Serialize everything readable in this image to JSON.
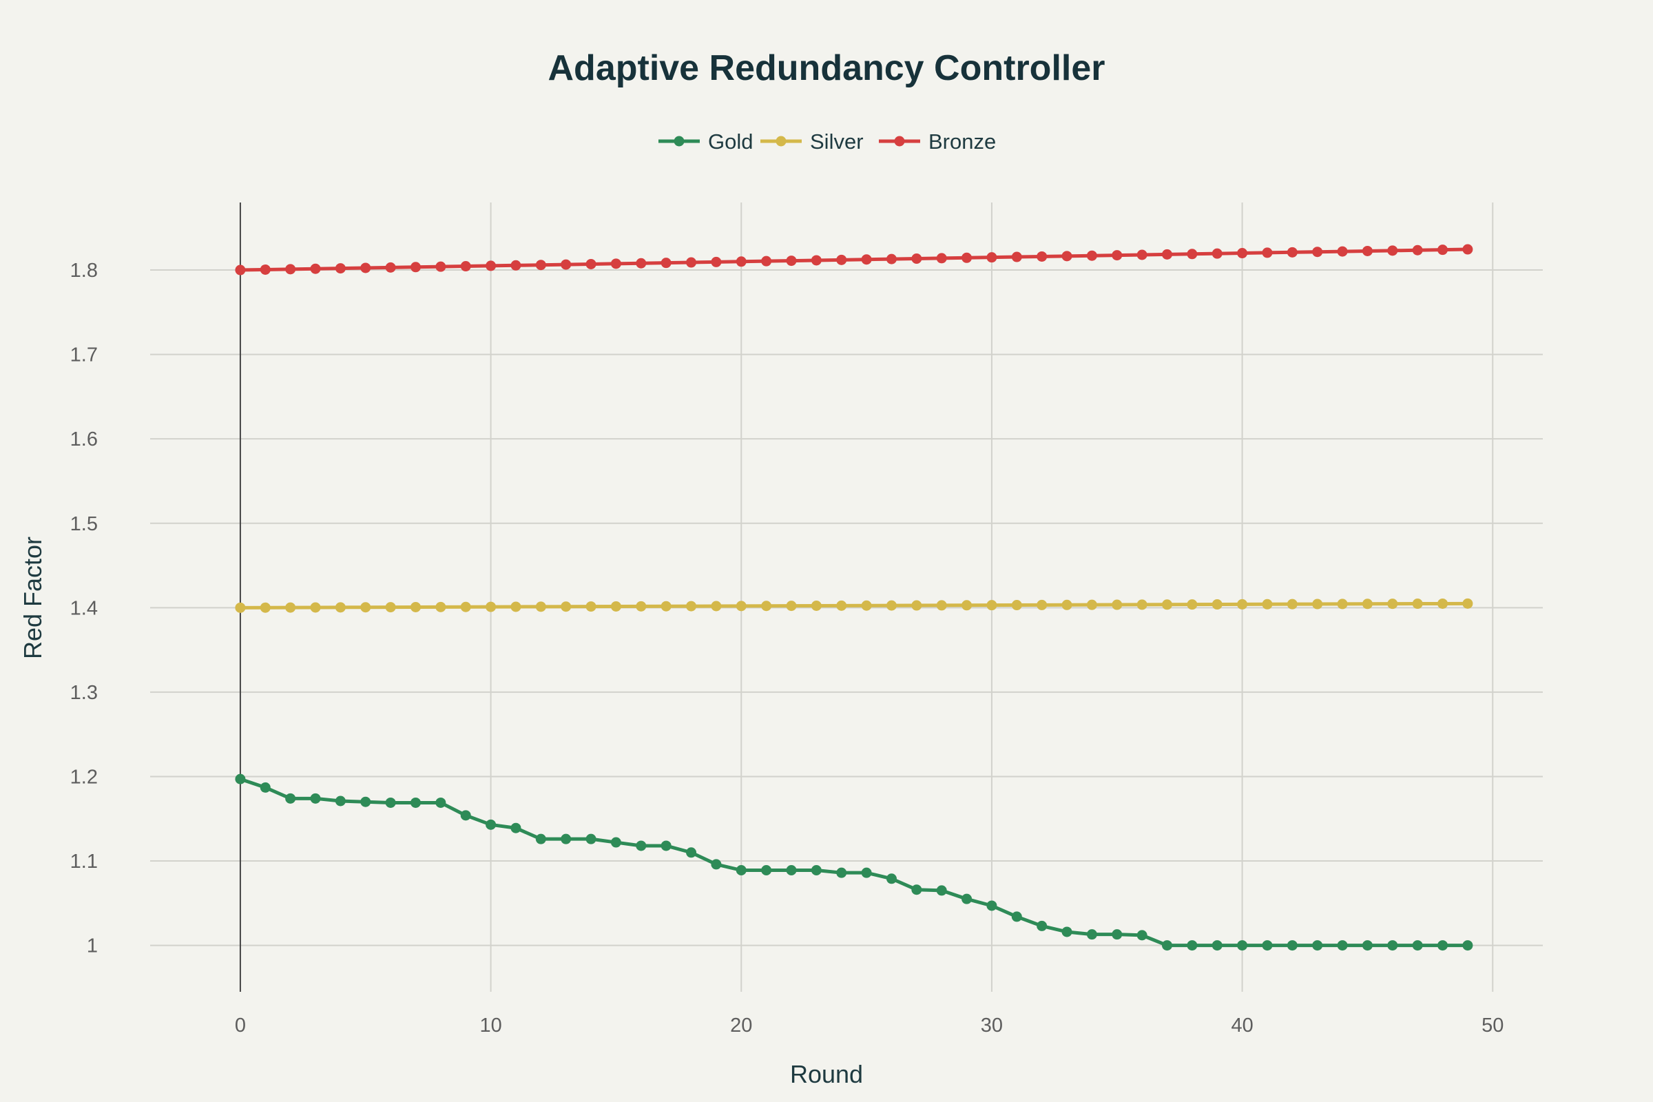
{
  "chart_data": {
    "type": "line",
    "title": "Adaptive Redundancy Controller",
    "xlabel": "Round",
    "ylabel": "Red Factor",
    "xlim": [
      -3.6,
      52.0
    ],
    "ylim": [
      0.945,
      1.88
    ],
    "x_ticks": [
      "0",
      "10",
      "20",
      "30",
      "40",
      "50"
    ],
    "y_ticks": [
      "1",
      "1.1",
      "1.2",
      "1.3",
      "1.4",
      "1.5",
      "1.6",
      "1.7",
      "1.8"
    ],
    "grid": true,
    "legend_position": "top-center",
    "x": [
      0,
      1,
      2,
      3,
      4,
      5,
      6,
      7,
      8,
      9,
      10,
      11,
      12,
      13,
      14,
      15,
      16,
      17,
      18,
      19,
      20,
      21,
      22,
      23,
      24,
      25,
      26,
      27,
      28,
      29,
      30,
      31,
      32,
      33,
      34,
      35,
      36,
      37,
      38,
      39,
      40,
      41,
      42,
      43,
      44,
      45,
      46,
      47,
      48,
      49
    ],
    "series": [
      {
        "name": "Gold",
        "color": "#2e8b57",
        "values": [
          1.197,
          1.187,
          1.174,
          1.174,
          1.171,
          1.17,
          1.169,
          1.169,
          1.169,
          1.154,
          1.143,
          1.139,
          1.126,
          1.126,
          1.126,
          1.122,
          1.118,
          1.118,
          1.11,
          1.096,
          1.089,
          1.089,
          1.089,
          1.089,
          1.086,
          1.086,
          1.079,
          1.066,
          1.065,
          1.055,
          1.047,
          1.034,
          1.023,
          1.016,
          1.013,
          1.013,
          1.012,
          1.0,
          1.0,
          1.0,
          1.0,
          1.0,
          1.0,
          1.0,
          1.0,
          1.0,
          1.0,
          1.0,
          1.0,
          1.0
        ]
      },
      {
        "name": "Silver",
        "color": "#d4b84a",
        "values": [
          1.4,
          1.4001,
          1.4002,
          1.4003,
          1.4004,
          1.4005,
          1.4006,
          1.4007,
          1.4008,
          1.4009,
          1.401,
          1.4011,
          1.4012,
          1.4013,
          1.4014,
          1.4015,
          1.4016,
          1.4017,
          1.4018,
          1.4019,
          1.402,
          1.4021,
          1.4022,
          1.4023,
          1.4024,
          1.4025,
          1.4026,
          1.4027,
          1.4028,
          1.4029,
          1.403,
          1.4031,
          1.4032,
          1.4033,
          1.4034,
          1.4035,
          1.4036,
          1.4037,
          1.4038,
          1.4039,
          1.404,
          1.4041,
          1.4042,
          1.4043,
          1.4044,
          1.4045,
          1.4046,
          1.4047,
          1.4048,
          1.4049
        ]
      },
      {
        "name": "Bronze",
        "color": "#d63f3f",
        "values": [
          1.8,
          1.8005,
          1.801,
          1.8015,
          1.802,
          1.8025,
          1.803,
          1.8035,
          1.804,
          1.8045,
          1.805,
          1.8055,
          1.806,
          1.8065,
          1.807,
          1.8075,
          1.808,
          1.8085,
          1.809,
          1.8095,
          1.81,
          1.8105,
          1.811,
          1.8115,
          1.812,
          1.8125,
          1.813,
          1.8135,
          1.814,
          1.8145,
          1.815,
          1.8155,
          1.816,
          1.8165,
          1.817,
          1.8175,
          1.818,
          1.8185,
          1.819,
          1.8195,
          1.82,
          1.8205,
          1.821,
          1.8215,
          1.822,
          1.8225,
          1.823,
          1.8235,
          1.824,
          1.8245
        ]
      }
    ]
  }
}
